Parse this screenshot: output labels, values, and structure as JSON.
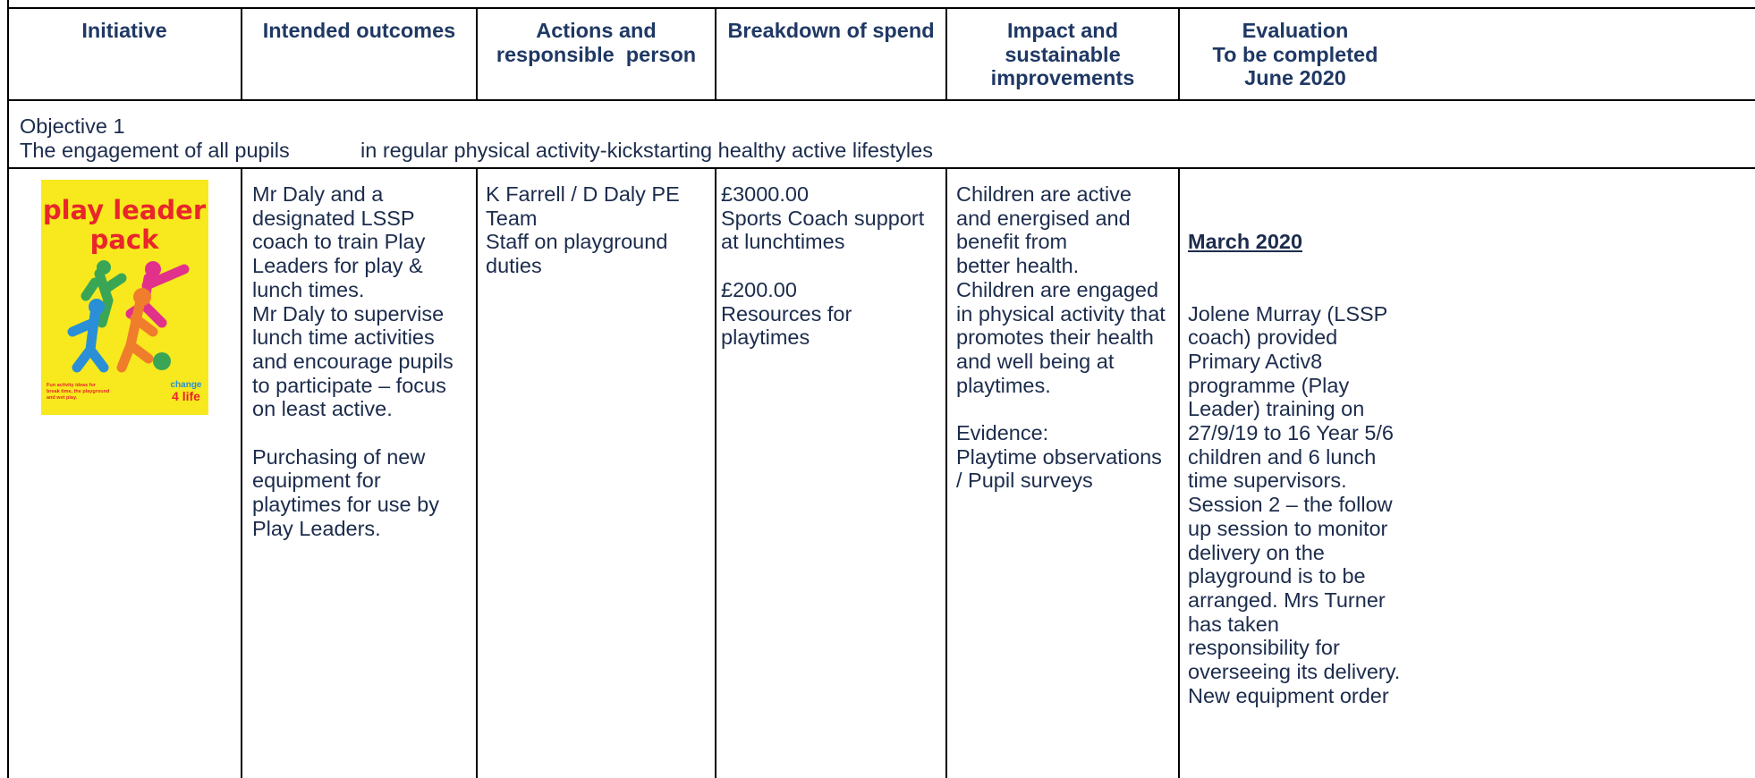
{
  "header": [
    [
      "Initiative"
    ],
    [
      "Intended outcomes"
    ],
    [
      "Actions and",
      "responsible  person"
    ],
    [
      "Breakdown of spend"
    ],
    [
      "Impact and",
      "sustainable",
      "improvements"
    ],
    [
      "Evaluation",
      "To be completed",
      "June 2020"
    ]
  ],
  "objective": {
    "title": "Objective 1",
    "text_start": "The engagement of all pupils",
    "text_end": "in regular physical activity-kickstarting healthy active lifestyles"
  },
  "poster": {
    "title_line1": "play leader",
    "title_line2": "pack",
    "caption": [
      "Fun activity ideas for",
      "break time, the playground",
      "and wet play."
    ],
    "logo_line1": "change",
    "logo_line2": "4 life"
  },
  "cells": {
    "outcomes": [
      [
        "Mr Daly and a",
        "designated LSSP",
        "coach to train Play",
        "Leaders for play &",
        "lunch times.",
        "Mr Daly to supervise",
        "lunch time activities",
        "and encourage pupils",
        "to participate – focus",
        "on least active."
      ],
      [
        "Purchasing of new",
        "equipment for",
        "playtimes for use by",
        "Play Leaders."
      ]
    ],
    "actions": [
      [
        "K Farrell / D Daly PE",
        "Team",
        "Staff on playground",
        "duties"
      ]
    ],
    "spend": [
      [
        "£3000.00",
        "Sports Coach support",
        "at lunchtimes"
      ],
      [
        "£200.00",
        "Resources for",
        "playtimes"
      ]
    ],
    "impact": [
      [
        "Children are active",
        "and energised and",
        "benefit from",
        "better health.",
        "Children are engaged",
        "in physical activity that",
        "promotes their health",
        "and well being at",
        "playtimes."
      ],
      [
        "Evidence:",
        "Playtime observations",
        "/ Pupil surveys"
      ]
    ]
  },
  "evaluation": {
    "heading": "March 2020",
    "lines": [
      "Jolene Murray (LSSP",
      "coach) provided",
      "Primary Activ8",
      "programme (Play",
      "Leader) training on",
      "27/9/19 to 16 Year 5/6",
      "children and 6 lunch",
      "time supervisors.",
      "Session 2 – the follow",
      "up session to monitor",
      "delivery on the",
      "playground is to be",
      "arranged. Mrs Turner",
      "has taken",
      "responsibility for",
      "overseeing its delivery.",
      "New equipment order"
    ]
  }
}
